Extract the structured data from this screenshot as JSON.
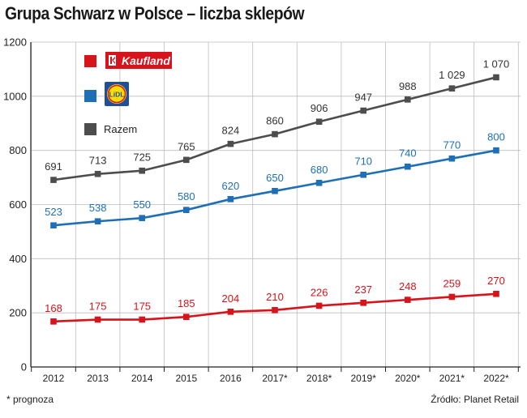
{
  "chart_data": {
    "type": "line",
    "title": "Grupa Schwarz w Polsce – liczba sklepów",
    "categories": [
      "2012",
      "2013",
      "2014",
      "2015",
      "2016",
      "2017*",
      "2018*",
      "2019*",
      "2020*",
      "2021*",
      "2022*"
    ],
    "ylim": [
      0,
      1200
    ],
    "yticks": [
      "0",
      "200",
      "400",
      "600",
      "800",
      "1000",
      "1200"
    ],
    "ytick_values": [
      0,
      200,
      400,
      600,
      800,
      1000,
      1200
    ],
    "grid": true,
    "legend_position": "top-left",
    "series": [
      {
        "key": "razem",
        "name": "Razem",
        "color": "#4d4d4d",
        "values": [
          691,
          713,
          725,
          765,
          824,
          860,
          906,
          947,
          988,
          1029,
          1070
        ],
        "labels": [
          "691",
          "713",
          "725",
          "765",
          "824",
          "860",
          "906",
          "947",
          "988",
          "1 029",
          "1 070"
        ]
      },
      {
        "key": "lidl",
        "name": "Lidl",
        "color": "#1e6fb5",
        "values": [
          523,
          538,
          550,
          580,
          620,
          650,
          680,
          710,
          740,
          770,
          800
        ],
        "labels": [
          "523",
          "538",
          "550",
          "580",
          "620",
          "650",
          "680",
          "710",
          "740",
          "770",
          "800"
        ]
      },
      {
        "key": "kaufland",
        "name": "Kaufland",
        "color": "#d7141b",
        "values": [
          168,
          175,
          175,
          185,
          204,
          210,
          226,
          237,
          248,
          259,
          270
        ],
        "labels": [
          "168",
          "175",
          "175",
          "185",
          "204",
          "210",
          "226",
          "237",
          "248",
          "259",
          "270"
        ]
      }
    ],
    "footnote": "* prognoza",
    "source": "Źródło: Planet Retail"
  },
  "legend": {
    "kaufland_text": "Kaufland",
    "lidl_text": "LiDL",
    "razem_text": "Razem"
  }
}
